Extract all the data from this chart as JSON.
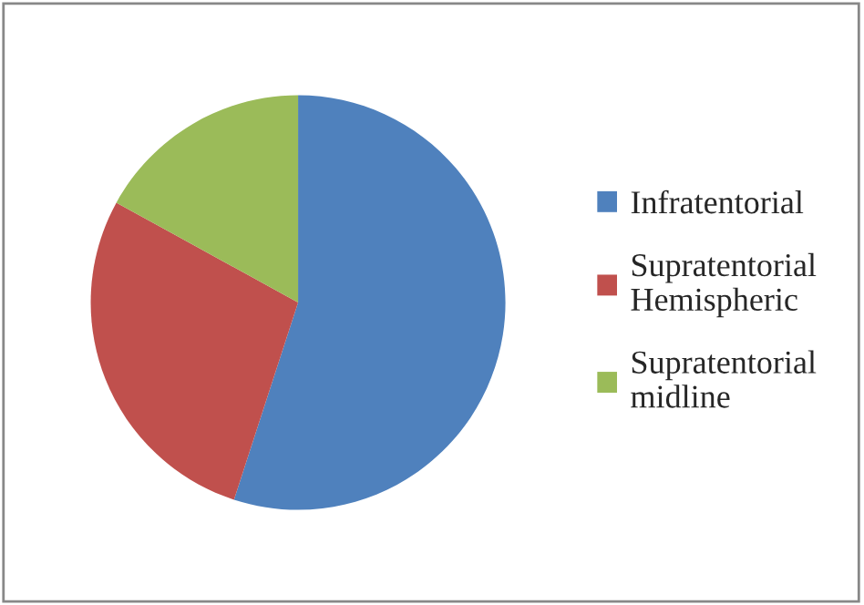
{
  "chart_data": {
    "type": "pie",
    "categories": [
      "Infratentorial",
      "Supratentorial Hemispheric",
      "Supratentorial midline"
    ],
    "values": [
      55,
      28,
      17
    ],
    "colors": [
      "#4f81bd",
      "#c0504d",
      "#9bbb59"
    ],
    "legend": "right"
  }
}
